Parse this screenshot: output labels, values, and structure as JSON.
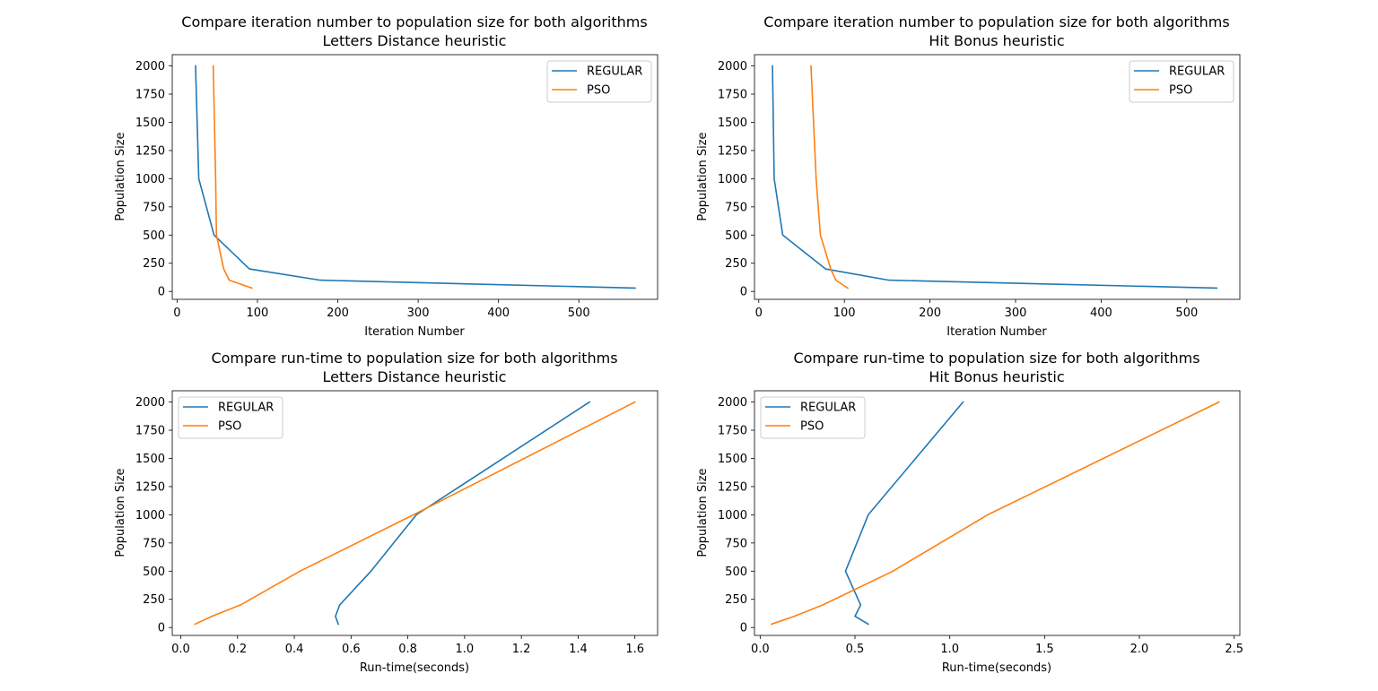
{
  "figure": {
    "background": "#ffffff",
    "series_colors": {
      "REGULAR": "#1f77b4",
      "PSO": "#ff7f0e"
    }
  },
  "chart_data": [
    {
      "type": "line",
      "title": "Compare iteration number to population size for both algorithms",
      "subtitle": "Letters Distance heuristic",
      "xlabel": "Iteration Number",
      "ylabel": "Population Size",
      "xlim": [
        -6,
        598
      ],
      "ylim": [
        -70,
        2100
      ],
      "xticks": [
        0,
        100,
        200,
        300,
        400,
        500
      ],
      "yticks": [
        0,
        250,
        500,
        750,
        1000,
        1250,
        1500,
        1750,
        2000
      ],
      "legend": "upper right",
      "series": [
        {
          "name": "REGULAR",
          "color": "#1f77b4",
          "points": [
            [
              570,
              30
            ],
            [
              178,
              100
            ],
            [
              90,
              200
            ],
            [
              46,
              500
            ],
            [
              27,
              1000
            ],
            [
              23,
              2000
            ]
          ]
        },
        {
          "name": "PSO",
          "color": "#ff7f0e",
          "points": [
            [
              93,
              30
            ],
            [
              65,
              100
            ],
            [
              58,
              200
            ],
            [
              49,
              500
            ],
            [
              48,
              1000
            ],
            [
              45,
              2000
            ]
          ]
        }
      ]
    },
    {
      "type": "line",
      "title": "Compare iteration number to population size for both algorithms",
      "subtitle": "Hit Bonus heuristic",
      "xlabel": "Iteration Number",
      "ylabel": "Population Size",
      "xlim": [
        -5,
        562
      ],
      "ylim": [
        -70,
        2100
      ],
      "xticks": [
        0,
        100,
        200,
        300,
        400,
        500
      ],
      "yticks": [
        0,
        250,
        500,
        750,
        1000,
        1250,
        1500,
        1750,
        2000
      ],
      "legend": "upper right",
      "series": [
        {
          "name": "REGULAR",
          "color": "#1f77b4",
          "points": [
            [
              535,
              30
            ],
            [
              152,
              100
            ],
            [
              78,
              200
            ],
            [
              28,
              500
            ],
            [
              18,
              1000
            ],
            [
              16,
              2000
            ]
          ]
        },
        {
          "name": "PSO",
          "color": "#ff7f0e",
          "points": [
            [
              104,
              30
            ],
            [
              90,
              100
            ],
            [
              84,
              200
            ],
            [
              72,
              500
            ],
            [
              67,
              1000
            ],
            [
              61,
              2000
            ]
          ]
        }
      ]
    },
    {
      "type": "line",
      "title": "Compare run-time to population size for both algorithms",
      "subtitle": "Letters Distance heuristic",
      "xlabel": "Run-time(seconds)",
      "ylabel": "Population Size",
      "xlim": [
        -0.03,
        1.68
      ],
      "ylim": [
        -70,
        2100
      ],
      "xticks": [
        0.0,
        0.2,
        0.4,
        0.6,
        0.8,
        1.0,
        1.2,
        1.4,
        1.6
      ],
      "xtick_labels": [
        "0.0",
        "0.2",
        "0.4",
        "0.6",
        "0.8",
        "1.0",
        "1.2",
        "1.4",
        "1.6"
      ],
      "yticks": [
        0,
        250,
        500,
        750,
        1000,
        1250,
        1500,
        1750,
        2000
      ],
      "legend": "upper left",
      "series": [
        {
          "name": "REGULAR",
          "color": "#1f77b4",
          "points": [
            [
              0.555,
              30
            ],
            [
              0.545,
              100
            ],
            [
              0.56,
              200
            ],
            [
              0.67,
              500
            ],
            [
              0.83,
              1000
            ],
            [
              1.44,
              2000
            ]
          ]
        },
        {
          "name": "PSO",
          "color": "#ff7f0e",
          "points": [
            [
              0.05,
              30
            ],
            [
              0.11,
              100
            ],
            [
              0.21,
              200
            ],
            [
              0.42,
              500
            ],
            [
              0.82,
              1000
            ],
            [
              1.6,
              2000
            ]
          ]
        }
      ]
    },
    {
      "type": "line",
      "title": "Compare run-time to population size for both algorithms",
      "subtitle": "Hit Bonus heuristic",
      "xlabel": "Run-time(seconds)",
      "ylabel": "Population Size",
      "xlim": [
        -0.03,
        2.53
      ],
      "ylim": [
        -70,
        2100
      ],
      "xticks": [
        0.0,
        0.5,
        1.0,
        1.5,
        2.0,
        2.5
      ],
      "xtick_labels": [
        "0.0",
        "0.5",
        "1.0",
        "1.5",
        "2.0",
        "2.5"
      ],
      "yticks": [
        0,
        250,
        500,
        750,
        1000,
        1250,
        1500,
        1750,
        2000
      ],
      "legend": "upper left",
      "series": [
        {
          "name": "REGULAR",
          "color": "#1f77b4",
          "points": [
            [
              0.57,
              30
            ],
            [
              0.5,
              100
            ],
            [
              0.53,
              200
            ],
            [
              0.45,
              500
            ],
            [
              0.57,
              1000
            ],
            [
              1.07,
              2000
            ]
          ]
        },
        {
          "name": "PSO",
          "color": "#ff7f0e",
          "points": [
            [
              0.06,
              30
            ],
            [
              0.18,
              100
            ],
            [
              0.33,
              200
            ],
            [
              0.7,
              500
            ],
            [
              1.2,
              1000
            ],
            [
              2.42,
              2000
            ]
          ]
        }
      ]
    }
  ]
}
